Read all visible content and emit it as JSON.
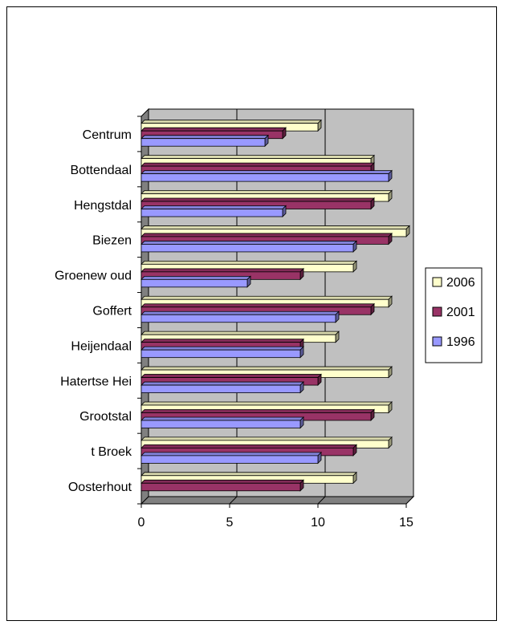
{
  "chart_data": {
    "type": "bar",
    "orientation": "horizontal",
    "style": "3d",
    "categories": [
      "Centrum",
      "Bottendaal",
      "Hengstdal",
      "Biezen",
      "Groenew oud",
      "Goffert",
      "Heijendaal",
      "Hatertse Hei",
      "Grootstal",
      "t Broek",
      "Oosterhout"
    ],
    "series": [
      {
        "name": "2006",
        "color": "#FFFFCC",
        "values": [
          10,
          13,
          14,
          15,
          12,
          14,
          11,
          14,
          14,
          14,
          12
        ]
      },
      {
        "name": "2001",
        "color": "#993366",
        "values": [
          8,
          13,
          13,
          14,
          9,
          13,
          9,
          10,
          13,
          12,
          9
        ]
      },
      {
        "name": "1996",
        "color": "#9999FF",
        "values": [
          7,
          14,
          8,
          12,
          6,
          11,
          9,
          9,
          9,
          10,
          0
        ]
      }
    ],
    "xlim": [
      0,
      15
    ],
    "xticks": [
      "0",
      "5",
      "10",
      "15"
    ],
    "grid": true,
    "legend_position": "right",
    "plot_background": "#C0C0C0"
  }
}
